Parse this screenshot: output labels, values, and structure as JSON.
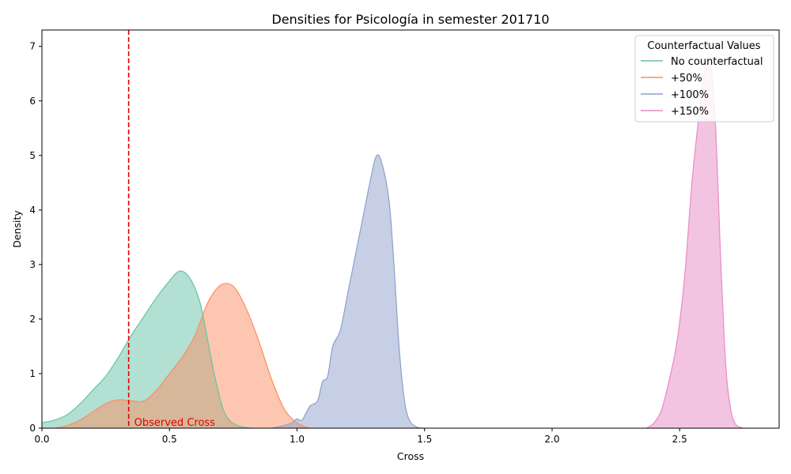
{
  "chart_data": {
    "type": "area",
    "title": "Densities for Psicología in semester 201710",
    "xlabel": "Cross",
    "ylabel": "Density",
    "xlim": [
      0.0,
      2.89
    ],
    "ylim": [
      0.0,
      7.3
    ],
    "xticks": [
      0.0,
      0.5,
      1.0,
      1.5,
      2.0,
      2.5
    ],
    "xtick_labels": [
      "0.0",
      "0.5",
      "1.0",
      "1.5",
      "2.0",
      "2.5"
    ],
    "yticks": [
      0,
      1,
      2,
      3,
      4,
      5,
      6,
      7
    ],
    "ytick_labels": [
      "0",
      "1",
      "2",
      "3",
      "4",
      "5",
      "6",
      "7"
    ],
    "grid": false,
    "legend": {
      "title": "Counterfactual Values",
      "position": "top-right"
    },
    "series": [
      {
        "name": "No counterfactual",
        "color": "#66c2a5",
        "fill": "#b2e0d1",
        "points": [
          [
            0.0,
            0.1
          ],
          [
            0.05,
            0.15
          ],
          [
            0.1,
            0.25
          ],
          [
            0.15,
            0.45
          ],
          [
            0.2,
            0.7
          ],
          [
            0.25,
            0.95
          ],
          [
            0.3,
            1.3
          ],
          [
            0.35,
            1.7
          ],
          [
            0.4,
            2.05
          ],
          [
            0.45,
            2.4
          ],
          [
            0.5,
            2.7
          ],
          [
            0.54,
            2.88
          ],
          [
            0.58,
            2.75
          ],
          [
            0.62,
            2.3
          ],
          [
            0.65,
            1.6
          ],
          [
            0.68,
            0.9
          ],
          [
            0.71,
            0.35
          ],
          [
            0.74,
            0.12
          ],
          [
            0.78,
            0.03
          ],
          [
            0.82,
            0.0
          ]
        ]
      },
      {
        "name": "+50%",
        "color": "#fc8d62",
        "fill": "#fdc6b0",
        "points": [
          [
            0.05,
            0.0
          ],
          [
            0.1,
            0.05
          ],
          [
            0.15,
            0.15
          ],
          [
            0.2,
            0.3
          ],
          [
            0.25,
            0.45
          ],
          [
            0.3,
            0.52
          ],
          [
            0.35,
            0.5
          ],
          [
            0.4,
            0.5
          ],
          [
            0.45,
            0.7
          ],
          [
            0.5,
            1.0
          ],
          [
            0.55,
            1.3
          ],
          [
            0.6,
            1.7
          ],
          [
            0.65,
            2.3
          ],
          [
            0.7,
            2.62
          ],
          [
            0.75,
            2.6
          ],
          [
            0.8,
            2.2
          ],
          [
            0.85,
            1.6
          ],
          [
            0.9,
            0.9
          ],
          [
            0.95,
            0.35
          ],
          [
            1.0,
            0.1
          ],
          [
            1.05,
            0.0
          ]
        ]
      },
      {
        "name": "+100%",
        "color": "#8da0cb",
        "fill": "#c6cfe5",
        "points": [
          [
            0.9,
            0.0
          ],
          [
            0.95,
            0.05
          ],
          [
            0.98,
            0.1
          ],
          [
            1.0,
            0.17
          ],
          [
            1.02,
            0.15
          ],
          [
            1.05,
            0.4
          ],
          [
            1.08,
            0.5
          ],
          [
            1.1,
            0.85
          ],
          [
            1.12,
            0.95
          ],
          [
            1.14,
            1.5
          ],
          [
            1.17,
            1.8
          ],
          [
            1.2,
            2.5
          ],
          [
            1.23,
            3.2
          ],
          [
            1.26,
            3.9
          ],
          [
            1.29,
            4.6
          ],
          [
            1.31,
            4.98
          ],
          [
            1.33,
            4.9
          ],
          [
            1.36,
            4.2
          ],
          [
            1.38,
            3.0
          ],
          [
            1.4,
            1.5
          ],
          [
            1.42,
            0.55
          ],
          [
            1.44,
            0.15
          ],
          [
            1.47,
            0.02
          ],
          [
            1.5,
            0.0
          ]
        ]
      },
      {
        "name": "+150%",
        "color": "#e78ac3",
        "fill": "#f3c4e1",
        "points": [
          [
            2.37,
            0.0
          ],
          [
            2.4,
            0.1
          ],
          [
            2.43,
            0.35
          ],
          [
            2.46,
            0.9
          ],
          [
            2.49,
            1.6
          ],
          [
            2.52,
            2.8
          ],
          [
            2.55,
            4.6
          ],
          [
            2.58,
            5.9
          ],
          [
            2.6,
            6.65
          ],
          [
            2.62,
            6.7
          ],
          [
            2.64,
            5.6
          ],
          [
            2.66,
            3.2
          ],
          [
            2.68,
            1.2
          ],
          [
            2.7,
            0.35
          ],
          [
            2.72,
            0.07
          ],
          [
            2.75,
            0.0
          ]
        ]
      }
    ],
    "annotations": [
      {
        "type": "vline",
        "x": 0.34,
        "label": "Observed Cross",
        "color": "#e00000",
        "style": "dashed"
      }
    ]
  }
}
